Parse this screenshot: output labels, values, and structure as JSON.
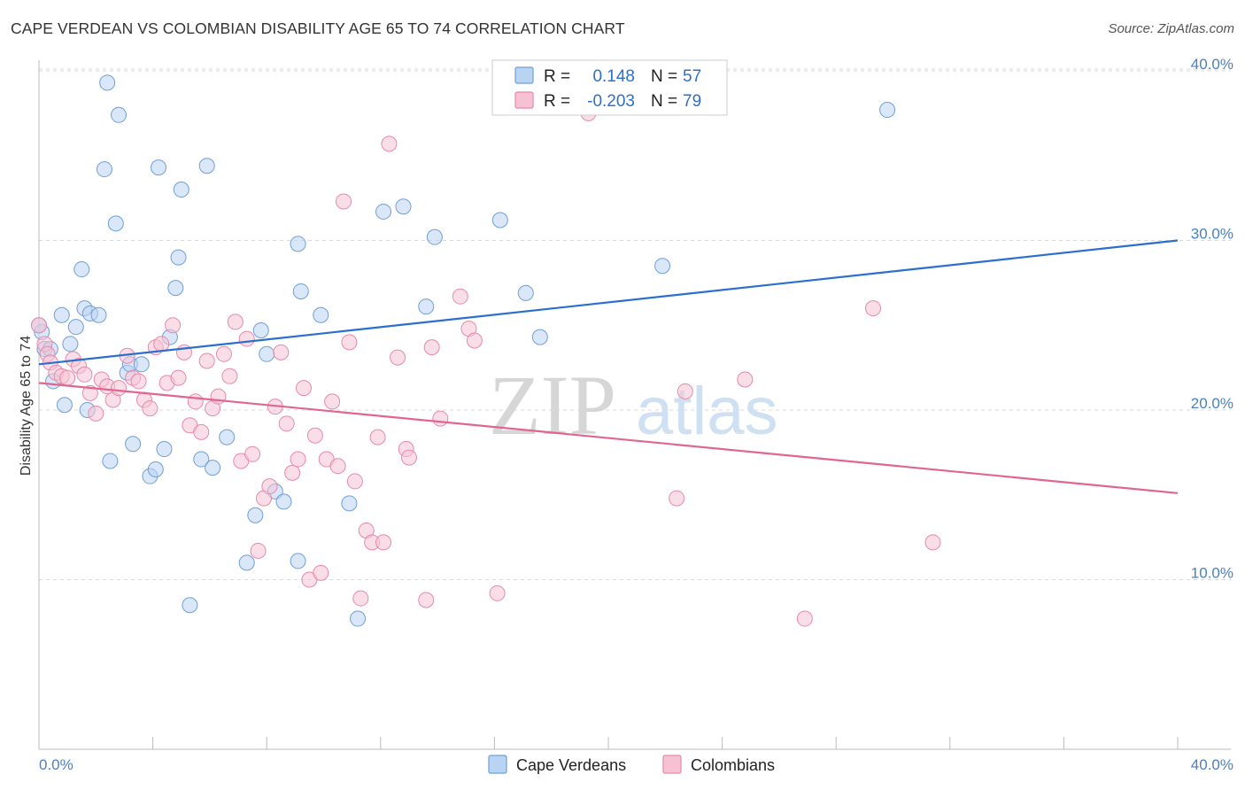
{
  "title": "CAPE VERDEAN VS COLOMBIAN DISABILITY AGE 65 TO 74 CORRELATION CHART",
  "source": "Source: ZipAtlas.com",
  "watermark": {
    "zip": "ZIP",
    "atlas": "atlas"
  },
  "legend": {
    "r_label": "R =",
    "n_label": "N =",
    "rows": [
      {
        "series": "Cape Verdeans",
        "r": "0.148",
        "n": "57"
      },
      {
        "series": "Colombians",
        "r": "-0.203",
        "n": "79"
      }
    ]
  },
  "colors": {
    "blue_fill": "#b9d3f2",
    "blue_stroke": "#6f9fd8",
    "blue_line": "#2a6fcd",
    "pink_fill": "#f6c2d3",
    "pink_stroke": "#e68aa8",
    "pink_line": "#e06690",
    "grid": "#d9d9d9",
    "axis_text": "#4a7fc1"
  },
  "chart_data": {
    "type": "scatter",
    "title": "CAPE VERDEAN VS COLOMBIAN DISABILITY AGE 65 TO 74 CORRELATION CHART",
    "xlabel": "",
    "ylabel": "Disability Age 65 to 74",
    "xlim": [
      0,
      40
    ],
    "ylim": [
      0,
      42
    ],
    "x_tick_labels": [
      "0.0%",
      "40.0%"
    ],
    "y_ticks": [
      10,
      20,
      30,
      40
    ],
    "y_tick_labels": [
      "10.0%",
      "20.0%",
      "30.0%",
      "40.0%"
    ],
    "legend_position": "top-center",
    "series": [
      {
        "name": "Cape Verdeans",
        "r": 0.148,
        "n": 57,
        "trend": {
          "x": [
            0,
            40
          ],
          "y": [
            22.7,
            30.0
          ]
        },
        "points": [
          [
            0.1,
            24.6
          ],
          [
            0.2,
            23.6
          ],
          [
            0.4,
            23.6
          ],
          [
            0.5,
            21.7
          ],
          [
            0.8,
            25.6
          ],
          [
            0.9,
            20.3
          ],
          [
            1.1,
            23.9
          ],
          [
            1.3,
            24.9
          ],
          [
            1.5,
            28.3
          ],
          [
            1.6,
            26.0
          ],
          [
            1.7,
            20.0
          ],
          [
            1.8,
            25.7
          ],
          [
            2.1,
            25.6
          ],
          [
            2.3,
            34.2
          ],
          [
            2.4,
            39.3
          ],
          [
            2.5,
            17.0
          ],
          [
            2.7,
            31.0
          ],
          [
            2.8,
            37.4
          ],
          [
            3.1,
            22.2
          ],
          [
            3.2,
            22.7
          ],
          [
            3.3,
            18.0
          ],
          [
            3.6,
            22.7
          ],
          [
            3.9,
            16.1
          ],
          [
            4.1,
            16.5
          ],
          [
            4.2,
            34.3
          ],
          [
            4.4,
            17.7
          ],
          [
            4.6,
            24.3
          ],
          [
            4.8,
            27.2
          ],
          [
            4.9,
            29.0
          ],
          [
            5.0,
            33.0
          ],
          [
            5.3,
            8.5
          ],
          [
            5.7,
            17.1
          ],
          [
            5.9,
            34.4
          ],
          [
            6.1,
            16.6
          ],
          [
            6.6,
            18.4
          ],
          [
            7.3,
            11.0
          ],
          [
            7.6,
            13.8
          ],
          [
            7.8,
            24.7
          ],
          [
            8.0,
            23.3
          ],
          [
            8.3,
            15.2
          ],
          [
            8.6,
            14.6
          ],
          [
            9.1,
            11.1
          ],
          [
            9.1,
            29.8
          ],
          [
            9.2,
            27.0
          ],
          [
            9.9,
            25.6
          ],
          [
            10.9,
            14.5
          ],
          [
            11.2,
            7.7
          ],
          [
            12.1,
            31.7
          ],
          [
            12.8,
            32.0
          ],
          [
            13.6,
            26.1
          ],
          [
            13.9,
            30.2
          ],
          [
            16.2,
            31.2
          ],
          [
            17.1,
            26.9
          ],
          [
            17.6,
            24.3
          ],
          [
            21.9,
            28.5
          ],
          [
            29.8,
            37.7
          ],
          [
            0.0,
            25.0
          ]
        ]
      },
      {
        "name": "Colombians",
        "r": -0.203,
        "n": 79,
        "trend": {
          "x": [
            0,
            40
          ],
          "y": [
            21.6,
            15.1
          ]
        },
        "points": [
          [
            0.0,
            25.0
          ],
          [
            0.2,
            23.9
          ],
          [
            0.3,
            23.3
          ],
          [
            0.4,
            22.8
          ],
          [
            0.6,
            22.2
          ],
          [
            0.8,
            22.0
          ],
          [
            1.0,
            21.9
          ],
          [
            1.2,
            23.0
          ],
          [
            1.4,
            22.6
          ],
          [
            1.6,
            22.1
          ],
          [
            1.8,
            21.0
          ],
          [
            2.0,
            19.8
          ],
          [
            2.2,
            21.8
          ],
          [
            2.4,
            21.4
          ],
          [
            2.6,
            20.6
          ],
          [
            2.8,
            21.3
          ],
          [
            3.1,
            23.2
          ],
          [
            3.3,
            21.9
          ],
          [
            3.5,
            21.7
          ],
          [
            3.7,
            20.6
          ],
          [
            3.9,
            20.1
          ],
          [
            4.1,
            23.7
          ],
          [
            4.3,
            23.9
          ],
          [
            4.5,
            21.6
          ],
          [
            4.7,
            25.0
          ],
          [
            4.9,
            21.9
          ],
          [
            5.1,
            23.4
          ],
          [
            5.3,
            19.1
          ],
          [
            5.5,
            20.5
          ],
          [
            5.7,
            18.7
          ],
          [
            5.9,
            22.9
          ],
          [
            6.1,
            20.1
          ],
          [
            6.3,
            20.8
          ],
          [
            6.5,
            23.3
          ],
          [
            6.7,
            22.0
          ],
          [
            6.9,
            25.2
          ],
          [
            7.1,
            17.0
          ],
          [
            7.3,
            24.2
          ],
          [
            7.5,
            17.4
          ],
          [
            7.7,
            11.7
          ],
          [
            7.9,
            14.8
          ],
          [
            8.1,
            15.5
          ],
          [
            8.3,
            20.2
          ],
          [
            8.5,
            23.4
          ],
          [
            8.7,
            19.2
          ],
          [
            8.9,
            16.3
          ],
          [
            9.1,
            17.1
          ],
          [
            9.3,
            21.3
          ],
          [
            9.5,
            10.0
          ],
          [
            9.7,
            18.5
          ],
          [
            9.9,
            10.4
          ],
          [
            10.1,
            17.1
          ],
          [
            10.3,
            20.5
          ],
          [
            10.5,
            16.7
          ],
          [
            10.7,
            32.3
          ],
          [
            10.9,
            24.0
          ],
          [
            11.1,
            15.8
          ],
          [
            11.3,
            8.9
          ],
          [
            11.5,
            12.9
          ],
          [
            11.7,
            12.2
          ],
          [
            11.9,
            18.4
          ],
          [
            12.1,
            12.2
          ],
          [
            12.3,
            35.7
          ],
          [
            12.6,
            23.1
          ],
          [
            12.9,
            17.7
          ],
          [
            13.0,
            17.2
          ],
          [
            13.6,
            8.8
          ],
          [
            13.8,
            23.7
          ],
          [
            14.1,
            19.5
          ],
          [
            14.8,
            26.7
          ],
          [
            15.1,
            24.8
          ],
          [
            15.3,
            24.1
          ],
          [
            16.1,
            9.2
          ],
          [
            19.3,
            37.5
          ],
          [
            22.4,
            14.8
          ],
          [
            22.7,
            21.1
          ],
          [
            24.8,
            21.8
          ],
          [
            26.9,
            7.7
          ],
          [
            29.3,
            26.0
          ],
          [
            31.4,
            12.2
          ]
        ]
      }
    ]
  },
  "bottom_legend": [
    "Cape Verdeans",
    "Colombians"
  ],
  "axis": {
    "x_left_label": "0.0%",
    "x_right_label": "40.0%",
    "y_title": "Disability Age 65 to 74"
  }
}
